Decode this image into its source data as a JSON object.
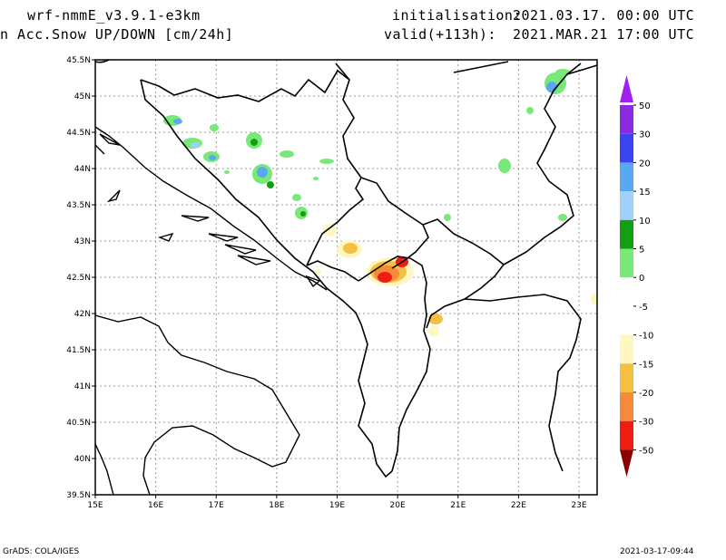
{
  "header": {
    "model": "wrf-nmmE_v3.9.1-e3km",
    "variable": "n Acc.Snow UP/DOWN [cm/24h]",
    "init_label": "initialisation:",
    "init_value": "2021.03.17.  00:00 UTC",
    "valid_label": "valid(+113h):",
    "valid_value": "2021.MAR.21 17:00 UTC"
  },
  "footer": {
    "credit": "GrADS: COLA/IGES",
    "timestamp": "2021-03-17-09:44"
  },
  "map": {
    "lon_ticks": [
      "15E",
      "16E",
      "17E",
      "18E",
      "19E",
      "20E",
      "21E",
      "22E",
      "23E"
    ],
    "lat_ticks": [
      "45.5N",
      "45N",
      "44.5N",
      "44N",
      "43.5N",
      "43N",
      "42.5N",
      "42N",
      "41.5N",
      "41N",
      "40.5N",
      "40N",
      "39.5N"
    ],
    "lon_range": [
      15,
      23.3
    ],
    "lat_range": [
      39.5,
      45.5
    ],
    "grid": true
  },
  "legend": {
    "levels": [
      {
        "label": "50",
        "color": "#8a2be2"
      },
      {
        "label": "30",
        "color": "#3b43f0"
      },
      {
        "label": "20",
        "color": "#5aa8f2"
      },
      {
        "label": "15",
        "color": "#9fd2fb"
      },
      {
        "label": "10",
        "color": "#12a012"
      },
      {
        "label": "5",
        "color": "#78e878"
      },
      {
        "label": "0",
        "color": "#ffffff"
      },
      {
        "label": "-5",
        "color": "#ffffff"
      },
      {
        "label": "-10",
        "color": "#fff7c2"
      },
      {
        "label": "-15",
        "color": "#f5c042"
      },
      {
        "label": "-20",
        "color": "#f58a3a"
      },
      {
        "label": "-30",
        "color": "#ee1c12"
      },
      {
        "label": "-50",
        "color": "#b80000"
      }
    ],
    "top_triangle_color": "#a020f0",
    "bottom_triangle_color": "#8b0000"
  }
}
